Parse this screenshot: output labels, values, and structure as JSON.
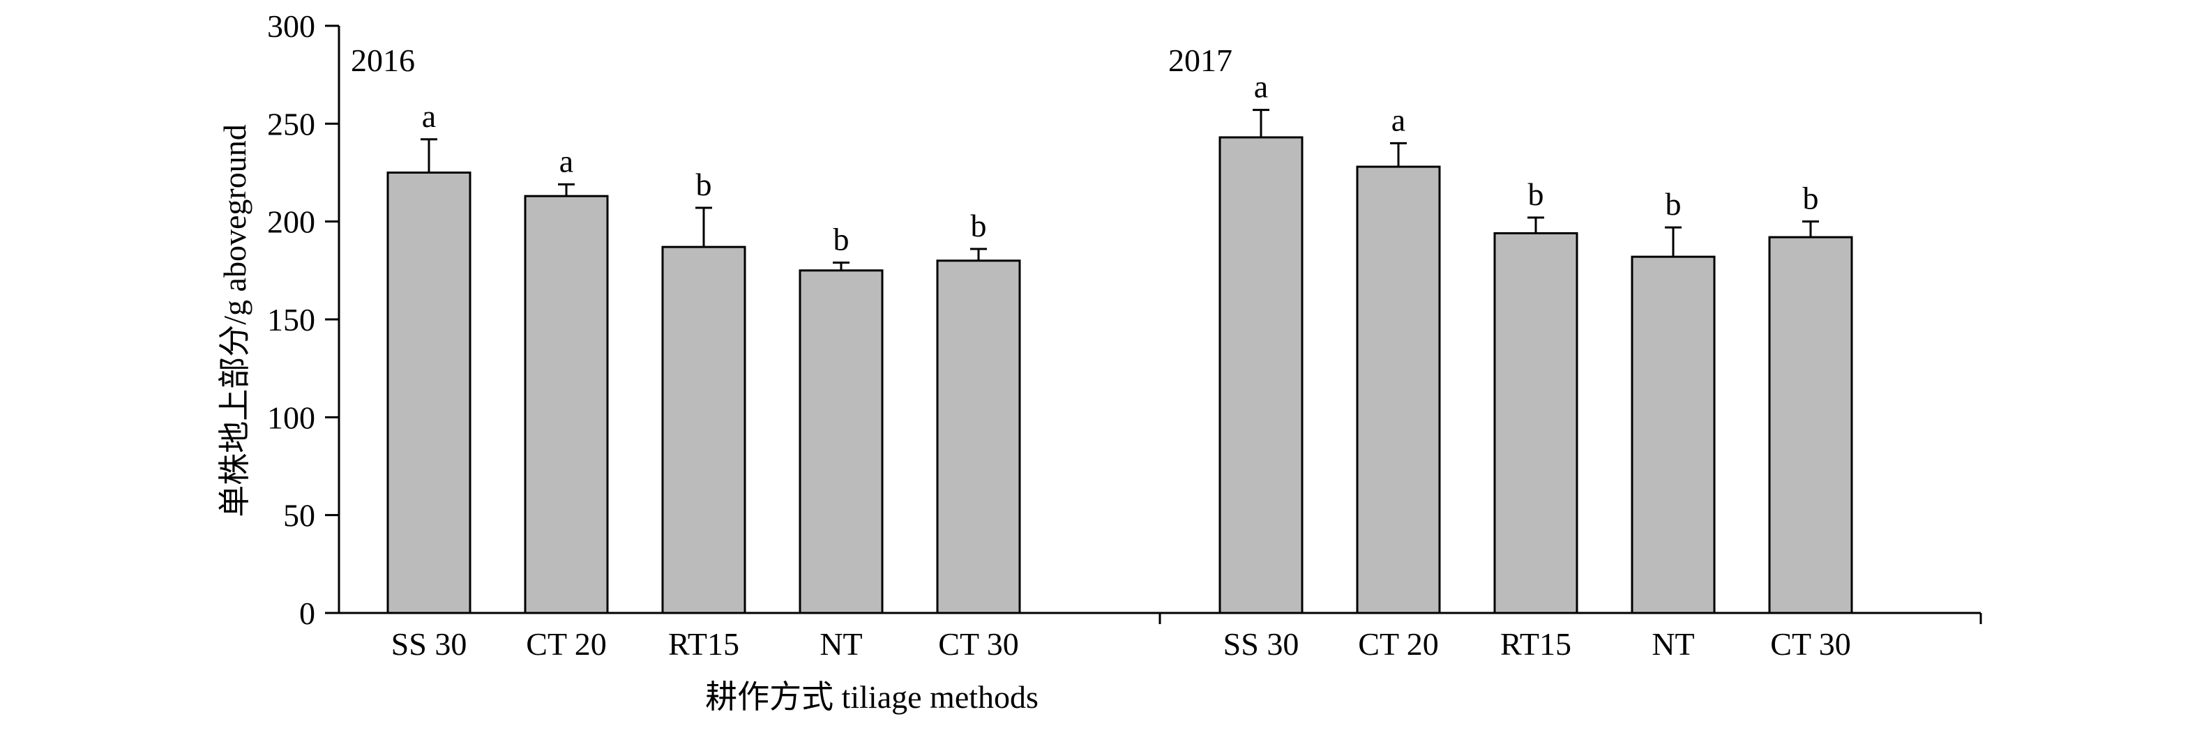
{
  "chart_data": {
    "type": "bar",
    "title": "",
    "xlabel": "耕作方式  tiliage methods",
    "ylabel": "单株地上部分/g aboveground",
    "ylim": [
      0,
      300
    ],
    "yticks": [
      0,
      50,
      100,
      150,
      200,
      250,
      300
    ],
    "grid": false,
    "bar_color": "#bbbbbb",
    "groups": [
      {
        "name": "2016",
        "categories": [
          "SS 30",
          "CT 20",
          "RT15",
          "NT",
          "CT 30"
        ],
        "values": [
          225,
          213,
          187,
          175,
          180
        ],
        "errors": [
          17,
          6,
          20,
          4,
          6
        ],
        "letters": [
          "a",
          "a",
          "b",
          "b",
          "b"
        ]
      },
      {
        "name": "2017",
        "categories": [
          "SS 30",
          "CT 20",
          "RT15",
          "NT",
          "CT 30"
        ],
        "values": [
          243,
          228,
          194,
          182,
          192
        ],
        "errors": [
          14,
          12,
          8,
          15,
          8
        ],
        "letters": [
          "a",
          "a",
          "b",
          "b",
          "b"
        ]
      }
    ]
  }
}
